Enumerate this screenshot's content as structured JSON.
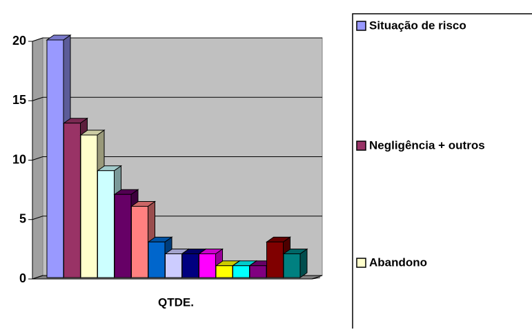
{
  "chart_data": {
    "type": "bar3d",
    "categories": [
      "QTDE."
    ],
    "series": [
      {
        "name": "Situação de risco",
        "color": "#9999ff",
        "values": [
          20
        ]
      },
      {
        "name": "Negligência + outros",
        "color": "#993366",
        "values": [
          13
        ]
      },
      {
        "name": "Abandono",
        "color": "#ffffcc",
        "values": [
          12
        ]
      },
      {
        "color": "#ccffff",
        "values": [
          9
        ]
      },
      {
        "color": "#660066",
        "values": [
          7
        ]
      },
      {
        "color": "#ff8080",
        "values": [
          6
        ]
      },
      {
        "color": "#0066cc",
        "values": [
          3
        ]
      },
      {
        "color": "#ccccff",
        "values": [
          2
        ]
      },
      {
        "color": "#000080",
        "values": [
          2
        ]
      },
      {
        "color": "#ff00ff",
        "values": [
          2
        ]
      },
      {
        "color": "#ffff00",
        "values": [
          1
        ]
      },
      {
        "color": "#00ffff",
        "values": [
          1
        ]
      },
      {
        "color": "#800080",
        "values": [
          1
        ]
      },
      {
        "color": "#800000",
        "values": [
          3
        ]
      },
      {
        "color": "#008080",
        "values": [
          2
        ]
      }
    ],
    "ylim": [
      0,
      20
    ],
    "yticks": [
      0,
      5,
      10,
      15,
      20
    ],
    "grid": true,
    "legend": "right"
  }
}
